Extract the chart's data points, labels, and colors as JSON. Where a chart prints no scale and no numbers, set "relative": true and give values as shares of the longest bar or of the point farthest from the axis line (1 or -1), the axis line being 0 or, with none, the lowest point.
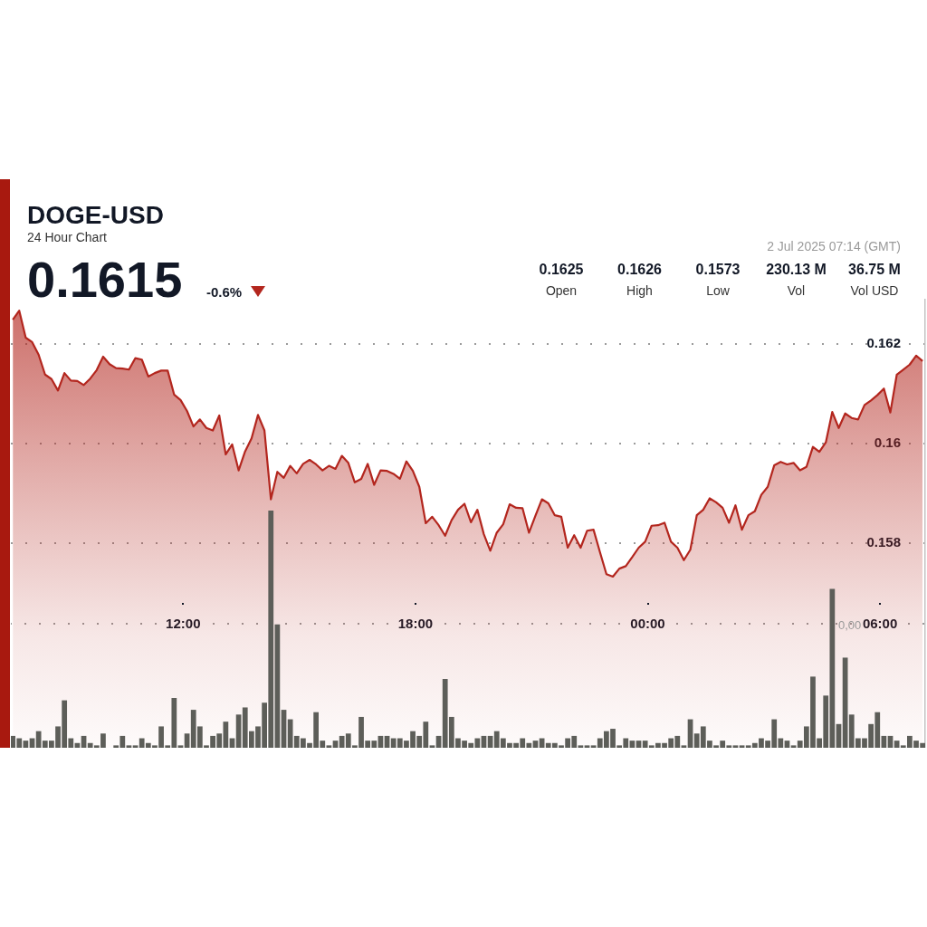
{
  "chart_data": [
    {
      "type": "area",
      "title": "DOGE-USD",
      "subtitle": "24 Hour Chart",
      "annotations": [
        "0.1615",
        "-0.6%",
        "2 Jul 2025 07:14 (GMT)",
        "0.1625",
        "Open",
        "0.1626",
        "High",
        "0.1573",
        "Low",
        "230.13 M",
        "Vol",
        "36.75 M",
        "Vol USD",
        "0,00"
      ],
      "x": [
        "2025-07-01T07:36",
        "2025-07-01T07:46",
        "2025-07-01T07:56",
        "2025-07-01T08:06",
        "2025-07-01T08:16",
        "2025-07-01T08:26",
        "2025-07-01T08:36",
        "2025-07-01T08:46",
        "2025-07-01T08:56",
        "2025-07-01T09:06",
        "2025-07-01T09:16",
        "2025-07-01T09:26",
        "2025-07-01T09:36",
        "2025-07-01T09:46",
        "2025-07-01T09:56",
        "2025-07-01T10:06",
        "2025-07-01T10:16",
        "2025-07-01T10:26",
        "2025-07-01T10:36",
        "2025-07-01T10:46",
        "2025-07-01T10:56",
        "2025-07-01T11:06",
        "2025-07-01T11:16",
        "2025-07-01T11:26",
        "2025-07-01T11:36",
        "2025-07-01T11:46",
        "2025-07-01T11:56",
        "2025-07-01T12:06",
        "2025-07-01T12:16",
        "2025-07-01T12:26",
        "2025-07-01T12:36",
        "2025-07-01T12:46",
        "2025-07-01T12:56",
        "2025-07-01T13:06",
        "2025-07-01T13:16",
        "2025-07-01T13:26",
        "2025-07-01T13:36",
        "2025-07-01T13:46",
        "2025-07-01T13:56",
        "2025-07-01T14:06",
        "2025-07-01T14:16",
        "2025-07-01T14:26",
        "2025-07-01T14:36",
        "2025-07-01T14:46",
        "2025-07-01T14:56",
        "2025-07-01T15:06",
        "2025-07-01T15:16",
        "2025-07-01T15:26",
        "2025-07-01T15:36",
        "2025-07-01T15:46",
        "2025-07-01T15:56",
        "2025-07-01T16:06",
        "2025-07-01T16:16",
        "2025-07-01T16:26",
        "2025-07-01T16:36",
        "2025-07-01T16:46",
        "2025-07-01T16:56",
        "2025-07-01T17:06",
        "2025-07-01T17:16",
        "2025-07-01T17:26",
        "2025-07-01T17:36",
        "2025-07-01T17:46",
        "2025-07-01T17:56",
        "2025-07-01T18:06",
        "2025-07-01T18:16",
        "2025-07-01T18:26",
        "2025-07-01T18:36",
        "2025-07-01T18:46",
        "2025-07-01T18:56",
        "2025-07-01T19:06",
        "2025-07-01T19:16",
        "2025-07-01T19:26",
        "2025-07-01T19:36",
        "2025-07-01T19:46",
        "2025-07-01T19:56",
        "2025-07-01T20:06",
        "2025-07-01T20:16",
        "2025-07-01T20:26",
        "2025-07-01T20:36",
        "2025-07-01T20:46",
        "2025-07-01T20:56",
        "2025-07-01T21:06",
        "2025-07-01T21:16",
        "2025-07-01T21:26",
        "2025-07-01T21:36",
        "2025-07-01T21:46",
        "2025-07-01T21:56",
        "2025-07-01T22:06",
        "2025-07-01T22:16",
        "2025-07-01T22:26",
        "2025-07-01T22:36",
        "2025-07-01T22:46",
        "2025-07-01T22:56",
        "2025-07-01T23:06",
        "2025-07-01T23:16",
        "2025-07-01T23:26",
        "2025-07-01T23:36",
        "2025-07-01T23:46",
        "2025-07-01T23:56",
        "2025-07-02T00:06",
        "2025-07-02T00:16",
        "2025-07-02T00:26",
        "2025-07-02T00:36",
        "2025-07-02T00:46",
        "2025-07-02T00:56",
        "2025-07-02T01:06",
        "2025-07-02T01:16",
        "2025-07-02T01:26",
        "2025-07-02T01:36",
        "2025-07-02T01:46",
        "2025-07-02T01:56",
        "2025-07-02T02:06",
        "2025-07-02T02:16",
        "2025-07-02T02:26",
        "2025-07-02T02:36",
        "2025-07-02T02:46",
        "2025-07-02T02:56",
        "2025-07-02T03:06",
        "2025-07-02T03:16",
        "2025-07-02T03:26",
        "2025-07-02T03:36",
        "2025-07-02T03:46",
        "2025-07-02T03:56",
        "2025-07-02T04:06",
        "2025-07-02T04:16",
        "2025-07-02T04:26",
        "2025-07-02T04:36",
        "2025-07-02T04:46",
        "2025-07-02T04:56",
        "2025-07-02T05:06",
        "2025-07-02T05:16",
        "2025-07-02T05:26",
        "2025-07-02T05:36",
        "2025-07-02T05:46",
        "2025-07-02T05:56",
        "2025-07-02T06:06",
        "2025-07-02T06:16",
        "2025-07-02T06:26",
        "2025-07-02T06:36",
        "2025-07-02T06:46",
        "2025-07-02T06:56",
        "2025-07-02T07:06"
      ],
      "xlim": [
        "2025-07-01T07:33",
        "2025-07-02T07:10"
      ],
      "xticks": [
        {
          "value": "2025-07-01T12:00",
          "label": "12:00"
        },
        {
          "value": "2025-07-01T18:00",
          "label": "18:00"
        },
        {
          "value": "2025-07-02T00:00",
          "label": "00:00"
        },
        {
          "value": "2025-07-02T06:00",
          "label": "06:00"
        }
      ],
      "ylim": [
        0.1539,
        0.1629
      ],
      "yticks": [
        0.158,
        0.16,
        0.162
      ],
      "grid": "y",
      "series": [
        {
          "color": "#b3261e",
          "values": [
            0.16248,
            0.16266,
            0.16212,
            0.16203,
            0.16178,
            0.16138,
            0.16129,
            0.16106,
            0.16141,
            0.16126,
            0.16125,
            0.16117,
            0.1613,
            0.16147,
            0.16174,
            0.16159,
            0.16151,
            0.1615,
            0.16148,
            0.16171,
            0.16168,
            0.16134,
            0.16141,
            0.16146,
            0.16146,
            0.16098,
            0.16087,
            0.16065,
            0.16034,
            0.16048,
            0.16031,
            0.16026,
            0.16056,
            0.15978,
            0.15998,
            0.15946,
            0.15984,
            0.1601,
            0.16057,
            0.16026,
            0.15888,
            0.15943,
            0.15931,
            0.15955,
            0.1594,
            0.15959,
            0.15967,
            0.15958,
            0.15946,
            0.15955,
            0.15949,
            0.15975,
            0.15961,
            0.15922,
            0.15929,
            0.15959,
            0.15917,
            0.15946,
            0.15945,
            0.15939,
            0.15929,
            0.15964,
            0.15945,
            0.15913,
            0.1584,
            0.15853,
            0.15836,
            0.15815,
            0.15846,
            0.15867,
            0.15879,
            0.15842,
            0.15867,
            0.15818,
            0.15785,
            0.15821,
            0.15838,
            0.15878,
            0.15871,
            0.1587,
            0.15821,
            0.15855,
            0.15888,
            0.1588,
            0.15856,
            0.15853,
            0.15791,
            0.15816,
            0.15791,
            0.15825,
            0.15827,
            0.15782,
            0.15738,
            0.15733,
            0.15749,
            0.15754,
            0.15772,
            0.15791,
            0.15803,
            0.15835,
            0.15836,
            0.15841,
            0.15803,
            0.15791,
            0.15766,
            0.15787,
            0.15856,
            0.15867,
            0.1589,
            0.15882,
            0.15871,
            0.15841,
            0.15876,
            0.15827,
            0.15856,
            0.15864,
            0.15897,
            0.15913,
            0.15956,
            0.15963,
            0.15958,
            0.15961,
            0.15946,
            0.15953,
            0.15993,
            0.15983,
            0.16002,
            0.16063,
            0.16031,
            0.1606,
            0.16051,
            0.16048,
            0.16077,
            0.16086,
            0.16097,
            0.1611,
            0.16062,
            0.16138,
            0.16148,
            0.16158,
            0.16176,
            0.16165
          ]
        }
      ]
    },
    {
      "type": "bar",
      "relative": true,
      "tick_labels": false,
      "x": [
        "2025-07-01T07:36",
        "2025-07-01T07:46",
        "2025-07-01T07:56",
        "2025-07-01T08:06",
        "2025-07-01T08:16",
        "2025-07-01T08:26",
        "2025-07-01T08:36",
        "2025-07-01T08:46",
        "2025-07-01T08:56",
        "2025-07-01T09:06",
        "2025-07-01T09:16",
        "2025-07-01T09:26",
        "2025-07-01T09:36",
        "2025-07-01T09:46",
        "2025-07-01T09:56",
        "2025-07-01T10:06",
        "2025-07-01T10:16",
        "2025-07-01T10:26",
        "2025-07-01T10:36",
        "2025-07-01T10:46",
        "2025-07-01T10:56",
        "2025-07-01T11:06",
        "2025-07-01T11:16",
        "2025-07-01T11:26",
        "2025-07-01T11:36",
        "2025-07-01T11:46",
        "2025-07-01T11:56",
        "2025-07-01T12:06",
        "2025-07-01T12:16",
        "2025-07-01T12:26",
        "2025-07-01T12:36",
        "2025-07-01T12:46",
        "2025-07-01T12:56",
        "2025-07-01T13:06",
        "2025-07-01T13:16",
        "2025-07-01T13:26",
        "2025-07-01T13:36",
        "2025-07-01T13:46",
        "2025-07-01T13:56",
        "2025-07-01T14:06",
        "2025-07-01T14:16",
        "2025-07-01T14:26",
        "2025-07-01T14:36",
        "2025-07-01T14:46",
        "2025-07-01T14:56",
        "2025-07-01T15:06",
        "2025-07-01T15:16",
        "2025-07-01T15:26",
        "2025-07-01T15:36",
        "2025-07-01T15:46",
        "2025-07-01T15:56",
        "2025-07-01T16:06",
        "2025-07-01T16:16",
        "2025-07-01T16:26",
        "2025-07-01T16:36",
        "2025-07-01T16:46",
        "2025-07-01T16:56",
        "2025-07-01T17:06",
        "2025-07-01T17:16",
        "2025-07-01T17:26",
        "2025-07-01T17:36",
        "2025-07-01T17:46",
        "2025-07-01T17:56",
        "2025-07-01T18:06",
        "2025-07-01T18:16",
        "2025-07-01T18:26",
        "2025-07-01T18:36",
        "2025-07-01T18:46",
        "2025-07-01T18:56",
        "2025-07-01T19:06",
        "2025-07-01T19:16",
        "2025-07-01T19:26",
        "2025-07-01T19:36",
        "2025-07-01T19:46",
        "2025-07-01T19:56",
        "2025-07-01T20:06",
        "2025-07-01T20:16",
        "2025-07-01T20:26",
        "2025-07-01T20:36",
        "2025-07-01T20:46",
        "2025-07-01T20:56",
        "2025-07-01T21:06",
        "2025-07-01T21:16",
        "2025-07-01T21:26",
        "2025-07-01T21:36",
        "2025-07-01T21:46",
        "2025-07-01T21:56",
        "2025-07-01T22:06",
        "2025-07-01T22:16",
        "2025-07-01T22:26",
        "2025-07-01T22:36",
        "2025-07-01T22:46",
        "2025-07-01T22:56",
        "2025-07-01T23:06",
        "2025-07-01T23:16",
        "2025-07-01T23:26",
        "2025-07-01T23:36",
        "2025-07-01T23:46",
        "2025-07-01T23:56",
        "2025-07-02T00:06",
        "2025-07-02T00:16",
        "2025-07-02T00:26",
        "2025-07-02T00:36",
        "2025-07-02T00:46",
        "2025-07-02T00:56",
        "2025-07-02T01:06",
        "2025-07-02T01:16",
        "2025-07-02T01:26",
        "2025-07-02T01:36",
        "2025-07-02T01:46",
        "2025-07-02T01:56",
        "2025-07-02T02:06",
        "2025-07-02T02:16",
        "2025-07-02T02:26",
        "2025-07-02T02:36",
        "2025-07-02T02:46",
        "2025-07-02T02:56",
        "2025-07-02T03:06",
        "2025-07-02T03:16",
        "2025-07-02T03:26",
        "2025-07-02T03:36",
        "2025-07-02T03:46",
        "2025-07-02T03:56",
        "2025-07-02T04:06",
        "2025-07-02T04:16",
        "2025-07-02T04:26",
        "2025-07-02T04:36",
        "2025-07-02T04:46",
        "2025-07-02T04:56",
        "2025-07-02T05:06",
        "2025-07-02T05:16",
        "2025-07-02T05:26",
        "2025-07-02T05:36",
        "2025-07-02T05:46",
        "2025-07-02T05:56",
        "2025-07-02T06:06",
        "2025-07-02T06:16",
        "2025-07-02T06:26",
        "2025-07-02T06:36",
        "2025-07-02T06:46",
        "2025-07-02T06:56",
        "2025-07-02T07:06"
      ],
      "xlim": [
        "2025-07-01T07:33",
        "2025-07-02T07:10"
      ],
      "series": [
        {
          "color": "#5d5e59",
          "values": [
            0.05,
            0.04,
            0.03,
            0.04,
            0.07,
            0.03,
            0.03,
            0.09,
            0.2,
            0.04,
            0.02,
            0.05,
            0.02,
            0.01,
            0.06,
            null,
            0.01,
            0.05,
            0.01,
            0.01,
            0.04,
            0.02,
            0.01,
            0.09,
            0.01,
            0.21,
            0.01,
            0.06,
            0.16,
            0.09,
            0.01,
            0.05,
            0.06,
            0.11,
            0.04,
            0.14,
            0.17,
            0.07,
            0.09,
            0.19,
            1,
            0.52,
            0.16,
            0.12,
            0.05,
            0.04,
            0.02,
            0.15,
            0.03,
            0.01,
            0.03,
            0.05,
            0.06,
            0.01,
            0.13,
            0.03,
            0.03,
            0.05,
            0.05,
            0.04,
            0.04,
            0.03,
            0.07,
            0.05,
            0.11,
            0.01,
            0.05,
            0.29,
            0.13,
            0.04,
            0.03,
            0.02,
            0.04,
            0.05,
            0.05,
            0.07,
            0.04,
            0.02,
            0.02,
            0.04,
            0.02,
            0.03,
            0.04,
            0.02,
            0.02,
            0.01,
            0.04,
            0.05,
            0.01,
            0.01,
            0.01,
            0.04,
            0.07,
            0.08,
            0.01,
            0.04,
            0.03,
            0.03,
            0.03,
            0.01,
            0.02,
            0.02,
            0.04,
            0.05,
            0.01,
            0.12,
            0.06,
            0.09,
            0.03,
            0.01,
            0.03,
            0.01,
            0.01,
            0.01,
            0.01,
            0.02,
            0.04,
            0.03,
            0.12,
            0.04,
            0.03,
            0.01,
            0.03,
            0.09,
            0.3,
            0.04,
            0.22,
            0.67,
            0.1,
            0.38,
            0.14,
            0.04,
            0.04,
            0.1,
            0.15,
            0.05,
            0.05,
            0.03,
            0.01,
            0.05,
            0.03,
            0.02
          ]
        }
      ]
    }
  ]
}
